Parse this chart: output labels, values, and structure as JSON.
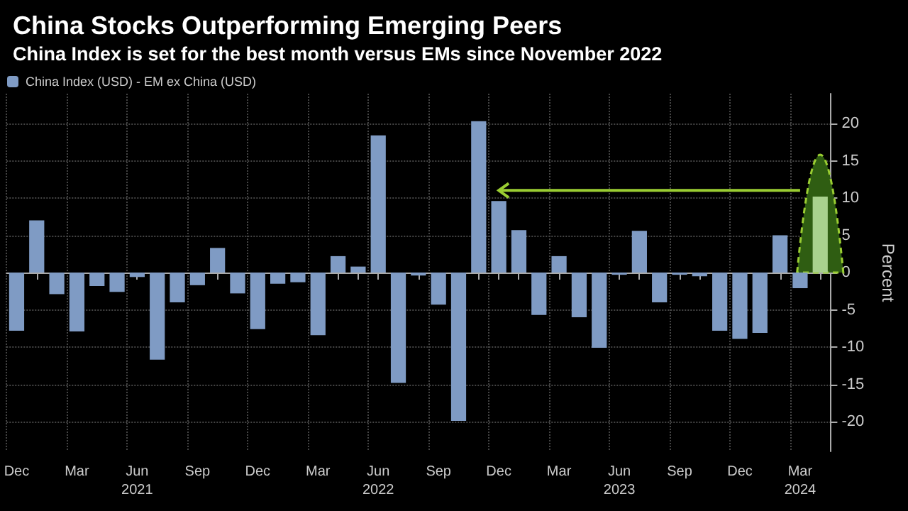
{
  "chart_data": {
    "type": "bar",
    "title": "China Stocks Outperforming Emerging Peers",
    "subtitle": "China Index is set for the best month versus EMs since November 2022",
    "ylabel": "Percent",
    "categories": [
      "Dec",
      null,
      null,
      "Mar",
      null,
      null,
      "Jun\n2021",
      null,
      null,
      "Sep",
      null,
      null,
      "Dec",
      null,
      null,
      "Mar",
      null,
      null,
      "Jun\n2022",
      null,
      null,
      "Sep",
      null,
      null,
      "Dec",
      null,
      null,
      "Mar",
      null,
      null,
      "Jun\n2023",
      null,
      null,
      "Sep",
      null,
      null,
      "Dec",
      null,
      null,
      "Mar\n2024",
      null
    ],
    "series": [
      {
        "name": "China Index (USD) - EM ex China (USD)",
        "color": "#7f9bc4",
        "values": [
          -7.8,
          7.0,
          -2.9,
          -7.9,
          -1.8,
          -2.6,
          -0.6,
          -11.7,
          -4.0,
          -1.7,
          3.3,
          -2.8,
          -7.6,
          -1.5,
          -1.3,
          -8.4,
          2.2,
          0.8,
          18.4,
          -14.8,
          -0.4,
          -4.3,
          -19.9,
          20.3,
          9.6,
          5.7,
          -5.7,
          2.2,
          -6.0,
          -10.1,
          -0.3,
          5.6,
          -4.0,
          -0.3,
          -0.5,
          -7.8,
          -8.9,
          -8.1,
          5.0,
          -2.1,
          10.2
        ],
        "colors": [
          "#7f9bc4",
          "#7f9bc4",
          "#7f9bc4",
          "#7f9bc4",
          "#7f9bc4",
          "#7f9bc4",
          "#7f9bc4",
          "#7f9bc4",
          "#7f9bc4",
          "#7f9bc4",
          "#7f9bc4",
          "#7f9bc4",
          "#7f9bc4",
          "#7f9bc4",
          "#7f9bc4",
          "#7f9bc4",
          "#7f9bc4",
          "#7f9bc4",
          "#7f9bc4",
          "#7f9bc4",
          "#7f9bc4",
          "#7f9bc4",
          "#7f9bc4",
          "#7f9bc4",
          "#7f9bc4",
          "#7f9bc4",
          "#7f9bc4",
          "#7f9bc4",
          "#7f9bc4",
          "#7f9bc4",
          "#7f9bc4",
          "#7f9bc4",
          "#7f9bc4",
          "#7f9bc4",
          "#7f9bc4",
          "#7f9bc4",
          "#7f9bc4",
          "#7f9bc4",
          "#7f9bc4",
          "#7f9bc4",
          "#a9d18e"
        ]
      }
    ],
    "ylim": [
      -24,
      24
    ],
    "yticks": [
      -20,
      -15,
      -10,
      -5,
      0,
      5,
      10,
      15,
      20
    ],
    "grid": true,
    "legend": "top left"
  }
}
